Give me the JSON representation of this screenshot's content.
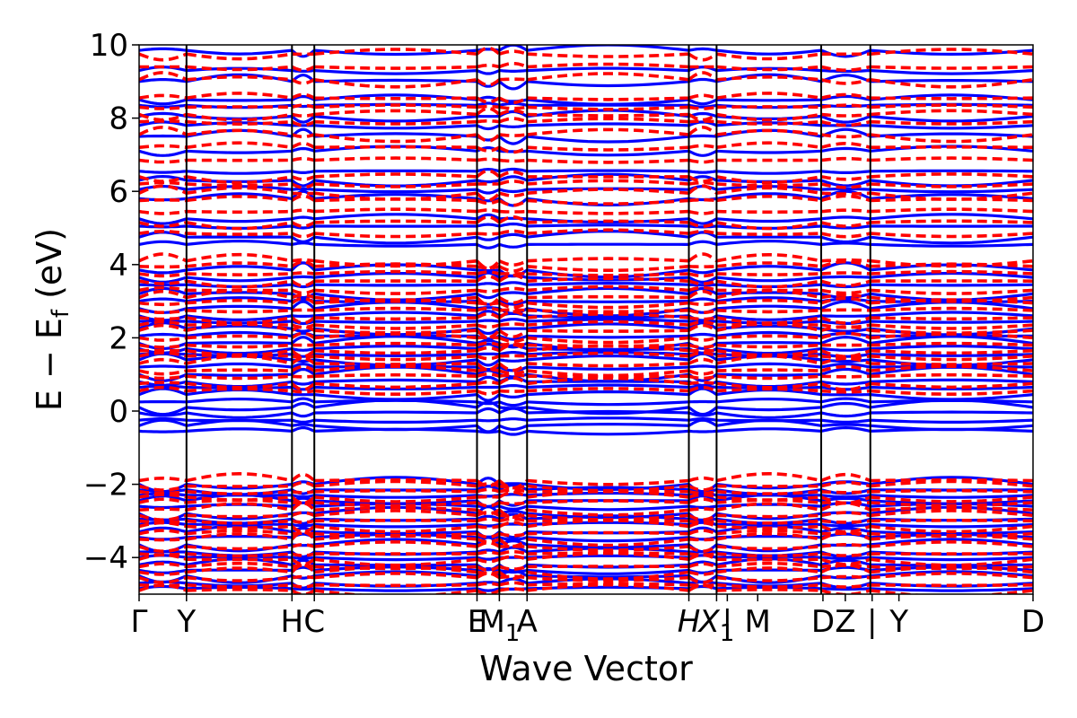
{
  "chart_data": {
    "type": "line",
    "title": "",
    "xlabel": "Wave Vector",
    "ylabel": "E − E",
    "ylabel_subscript": "f",
    "ylabel_unit": " (eV)",
    "ylim": [
      -5,
      10
    ],
    "yticks": [
      -4,
      -2,
      0,
      2,
      4,
      6,
      8,
      10
    ],
    "ytick_labels": [
      "−4",
      "−2",
      "0",
      "2",
      "4",
      "6",
      "8",
      "10"
    ],
    "xlim": [
      0,
      1
    ],
    "kpoints": [
      {
        "x": 0.0,
        "label": "Γ"
      },
      {
        "x": 0.053,
        "label": "Y"
      },
      {
        "x": 0.171,
        "label": "H"
      },
      {
        "x": 0.196,
        "label": "C"
      },
      {
        "x": 0.378,
        "label": "E"
      },
      {
        "x": 0.403,
        "label": "M",
        "subscript": "1"
      },
      {
        "x": 0.434,
        "label": "A"
      },
      {
        "x": 0.615,
        "label": "H",
        "italic": true
      },
      {
        "x": 0.646,
        "label": "X",
        "italic": true,
        "subscript": "1"
      },
      {
        "x": 0.658,
        "label": "|"
      },
      {
        "x": 0.692,
        "label": "M"
      },
      {
        "x": 0.765,
        "label": "D"
      },
      {
        "x": 0.79,
        "label": "Z"
      },
      {
        "x": 0.82,
        "label": "|"
      },
      {
        "x": 0.85,
        "label": "Y"
      },
      {
        "x": 1.0,
        "label": "D"
      }
    ],
    "segment_boundaries": [
      0.053,
      0.171,
      0.196,
      0.378,
      0.403,
      0.434,
      0.615,
      0.646,
      0.763,
      0.818
    ],
    "series": [
      {
        "style": "solid",
        "color": "#0000ff",
        "levels": [
          -4.85,
          -4.7,
          -4.5,
          -4.35,
          -4.2,
          -4.0,
          -3.85,
          -3.65,
          -3.45,
          -3.3,
          -3.1,
          -2.95,
          -2.8,
          -2.6,
          -2.45,
          -2.3,
          -2.15,
          -2.0,
          -0.55,
          -0.4,
          -0.25,
          -0.05,
          0.1,
          0.25,
          0.45,
          0.65,
          0.8,
          1.0,
          1.2,
          1.4,
          1.55,
          1.7,
          1.85,
          2.05,
          2.25,
          2.45,
          2.6,
          2.8,
          3.0,
          3.2,
          3.45,
          3.65,
          3.85,
          4.55,
          4.75,
          5.05,
          5.25,
          5.8,
          6.05,
          6.3,
          6.55,
          7.1,
          7.5,
          7.8,
          8.05,
          8.35,
          8.5,
          9.0,
          9.3,
          9.85
        ]
      },
      {
        "style": "dashed",
        "color": "#ff0000",
        "levels": [
          -4.9,
          -4.75,
          -4.55,
          -4.4,
          -4.25,
          -4.05,
          -3.9,
          -3.7,
          -3.5,
          -3.35,
          -3.15,
          -3.0,
          -2.85,
          -2.7,
          -2.5,
          -2.35,
          -2.2,
          -2.05,
          -1.9,
          0.55,
          0.75,
          0.95,
          1.1,
          1.3,
          1.5,
          1.65,
          1.8,
          2.0,
          2.2,
          2.35,
          2.55,
          2.75,
          2.95,
          3.1,
          3.3,
          3.55,
          3.75,
          3.95,
          4.1,
          4.85,
          5.15,
          5.45,
          5.75,
          5.95,
          6.2,
          6.4,
          6.85,
          7.2,
          7.55,
          7.9,
          8.1,
          8.3,
          8.55,
          9.05,
          9.4,
          9.75
        ]
      }
    ],
    "legend": "none",
    "grid": false,
    "line_colors": {
      "solid": "#0000ff",
      "dashed": "#ff0000",
      "axes": "#000000"
    }
  }
}
